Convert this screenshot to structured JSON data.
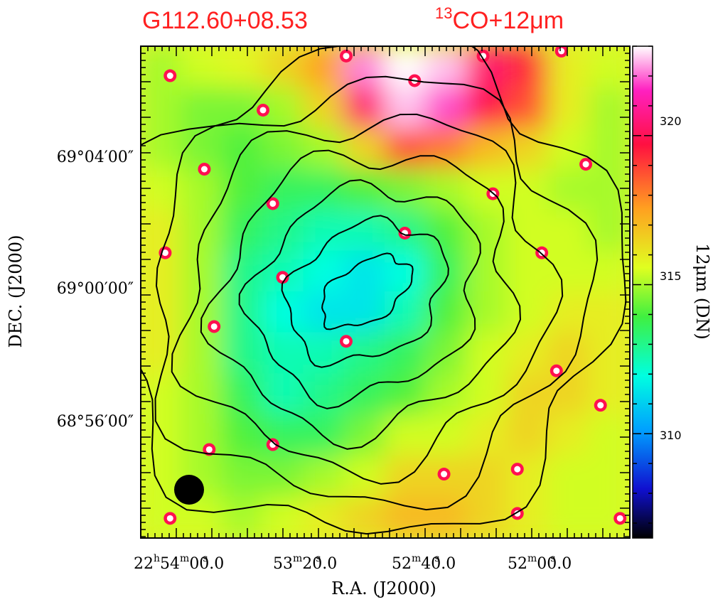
{
  "chart_data": {
    "type": "heatmap",
    "title_left": "G112.60+08.53",
    "title_right": {
      "sup": "13",
      "text": "CO+12μm"
    },
    "title_color": "#ff2020",
    "xlabel": "R.A.  (J2000)",
    "ylabel": "DEC.  (J2000)",
    "x_ticks": [
      {
        "h": "22",
        "m": "54",
        "s": "00.0"
      },
      {
        "m": "53",
        "s": "20.0"
      },
      {
        "m": "52",
        "s": "40.0"
      },
      {
        "m": "52",
        "s": "00.0"
      }
    ],
    "x_tick_units": {
      "h": "h",
      "m": "m",
      "s": "s"
    },
    "y_ticks": [
      "69°04′00″",
      "69°00′00″",
      "68°56′00″"
    ],
    "colorbar": {
      "label": "12μm  (DN)",
      "ticks": [
        310,
        315,
        320
      ],
      "range": [
        306.5,
        323
      ],
      "colormap": [
        "#000000",
        "#1010d0",
        "#00a0ff",
        "#00ffe0",
        "#40f040",
        "#e0ff20",
        "#ffa020",
        "#ff1040",
        "#ff20c0",
        "#ffffff"
      ]
    },
    "image_grid": {
      "cols": 12,
      "rows": 12,
      "values": [
        [
          315.0,
          315.5,
          315.8,
          316.5,
          317.5,
          322.0,
          323.0,
          322.5,
          320.0,
          319.0,
          316.0,
          315.5
        ],
        [
          315.0,
          314.5,
          314.5,
          315.0,
          316.5,
          320.0,
          322.5,
          321.5,
          319.5,
          318.5,
          316.0,
          315.0
        ],
        [
          315.0,
          314.5,
          314.0,
          314.5,
          315.0,
          316.5,
          318.5,
          318.0,
          317.0,
          316.5,
          315.5,
          315.0
        ],
        [
          315.5,
          315.0,
          314.0,
          313.5,
          313.5,
          314.0,
          314.5,
          315.0,
          315.5,
          315.5,
          315.0,
          315.0
        ],
        [
          316.0,
          315.0,
          313.5,
          313.0,
          312.5,
          312.5,
          313.0,
          314.0,
          315.0,
          315.5,
          315.5,
          315.0
        ],
        [
          316.0,
          315.0,
          313.0,
          312.5,
          312.0,
          311.5,
          312.0,
          313.5,
          315.0,
          315.5,
          315.5,
          315.5
        ],
        [
          316.0,
          315.0,
          313.0,
          312.0,
          311.5,
          311.5,
          312.5,
          314.0,
          315.0,
          315.5,
          316.0,
          316.0
        ],
        [
          316.0,
          315.0,
          313.0,
          312.5,
          312.5,
          313.0,
          313.5,
          314.5,
          315.5,
          316.0,
          316.5,
          316.0
        ],
        [
          315.5,
          315.0,
          313.5,
          312.5,
          313.0,
          313.5,
          314.0,
          315.0,
          315.5,
          316.5,
          316.5,
          316.0
        ],
        [
          315.5,
          315.0,
          314.0,
          313.5,
          313.5,
          314.5,
          315.5,
          315.5,
          316.0,
          316.5,
          316.0,
          315.5
        ],
        [
          315.5,
          315.0,
          314.5,
          314.5,
          315.0,
          315.5,
          316.5,
          316.5,
          316.5,
          316.0,
          315.5,
          315.5
        ],
        [
          315.5,
          315.5,
          315.0,
          315.5,
          316.0,
          316.5,
          317.0,
          317.0,
          316.5,
          316.0,
          315.5,
          315.5
        ]
      ]
    },
    "contour_levels": 7,
    "grid": false,
    "beam_marker": "filled circle, lower-left"
  }
}
